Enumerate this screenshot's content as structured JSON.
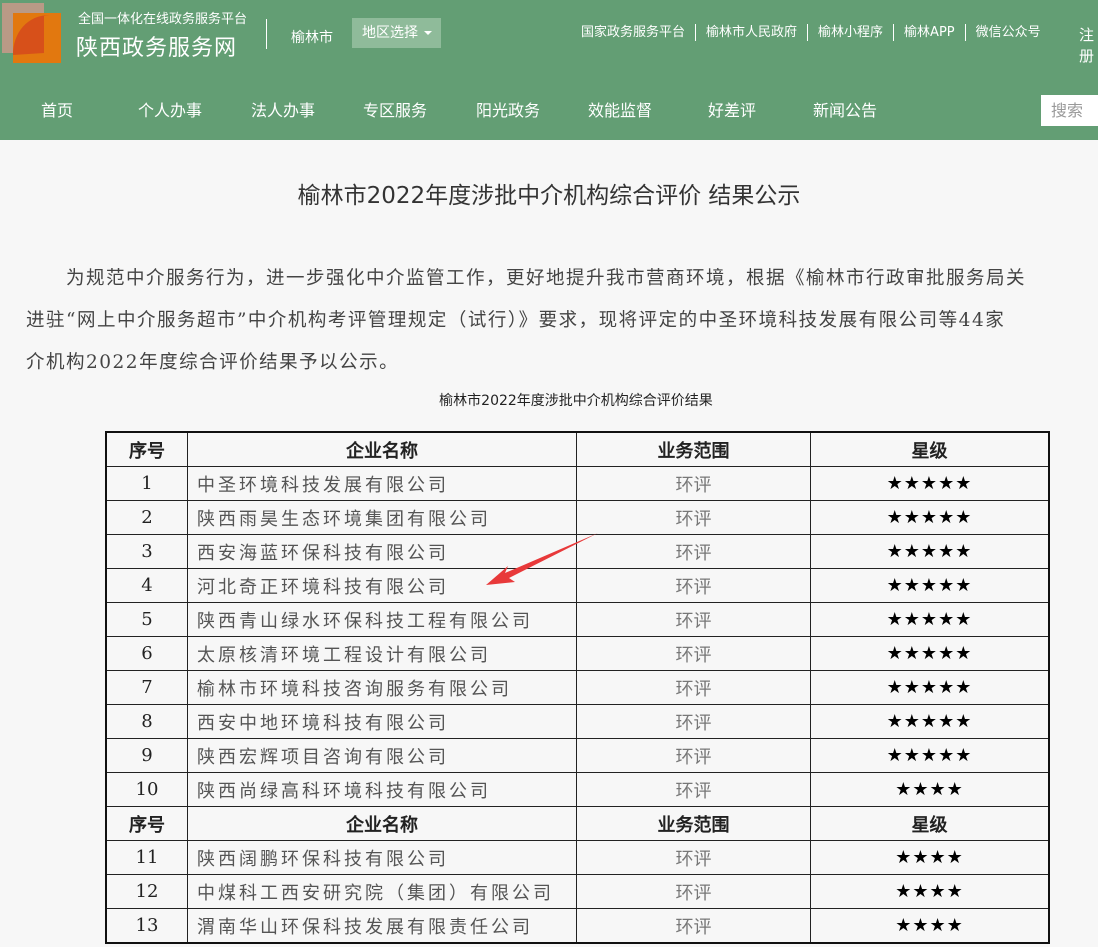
{
  "header": {
    "platform": "全国一体化在线政务服务平台",
    "brand": "陕西政务服务网",
    "city": "榆林市",
    "region_select": "地区选择",
    "links": [
      "国家政务服务平台",
      "榆林市人民政府",
      "榆林小程序",
      "榆林APP",
      "微信公众号"
    ],
    "register": "注册"
  },
  "nav": {
    "items": [
      "首页",
      "个人办事",
      "法人办事",
      "专区服务",
      "阳光政务",
      "效能监督",
      "好差评",
      "新闻公告"
    ],
    "search_placeholder": "搜索"
  },
  "article": {
    "title": "榆林市2022年度涉批中介机构综合评价 结果公示",
    "lines": [
      "　　为规范中介服务行为，进一步强化中介监管工作，更好地提升我市营商环境，根据《榆林市行政审批服务局关",
      "进驻“网上中介服务超市”中介机构考评管理规定（试行）》要求，现将评定的中圣环境科技发展有限公司等44家",
      "介机构2022年度综合评价结果予以公示。"
    ],
    "table_caption": "榆林市2022年度涉批中介机构综合评价结果",
    "headers": [
      "序号",
      "企业名称",
      "业务范围",
      "星级"
    ],
    "rows": [
      [
        "1",
        "中圣环境科技发展有限公司",
        "环评",
        "★★★★★"
      ],
      [
        "2",
        "陕西雨昊生态环境集团有限公司",
        "环评",
        "★★★★★"
      ],
      [
        "3",
        "西安海蓝环保科技有限公司",
        "环评",
        "★★★★★"
      ],
      [
        "4",
        "河北奇正环境科技有限公司",
        "环评",
        "★★★★★"
      ],
      [
        "5",
        "陕西青山绿水环保科技工程有限公司",
        "环评",
        "★★★★★"
      ],
      [
        "6",
        "太原核清环境工程设计有限公司",
        "环评",
        "★★★★★"
      ],
      [
        "7",
        "榆林市环境科技咨询服务有限公司",
        "环评",
        "★★★★★"
      ],
      [
        "8",
        "西安中地环境科技有限公司",
        "环评",
        "★★★★★"
      ],
      [
        "9",
        "陕西宏辉项目咨询有限公司",
        "环评",
        "★★★★★"
      ],
      [
        "10",
        "陕西尚绿高科环境科技有限公司",
        "环评",
        "★★★★"
      ]
    ],
    "rows2": [
      [
        "11",
        "陕西阔鹏环保科技有限公司",
        "环评",
        "★★★★"
      ],
      [
        "12",
        "中煤科工西安研究院（集团）有限公司",
        "环评",
        "★★★★"
      ],
      [
        "13",
        "渭南华山环保科技发展有限责任公司",
        "环评",
        "★★★★"
      ]
    ]
  },
  "colors": {
    "header_green": "#639e74",
    "arrow": "#e8393a"
  }
}
